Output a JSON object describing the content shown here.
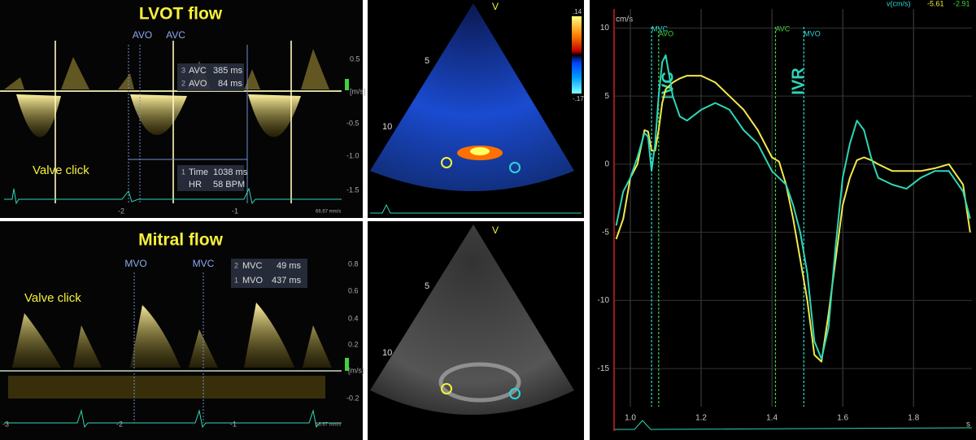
{
  "lvot_panel": {
    "title": "LVOT flow",
    "markers": [
      "AVO",
      "AVC"
    ],
    "measure_1": [
      "3",
      "AVC",
      "385 ms"
    ],
    "measure_2": [
      "2",
      "AVO",
      "84 ms"
    ],
    "measure_3": [
      "1",
      "Time",
      "1038 ms"
    ],
    "measure_4": [
      "HR",
      "58 BPM"
    ],
    "annotation": "Valve click",
    "unit": "[m/s]",
    "scale_labels": [
      "0.5",
      "-0.5",
      "-1.0",
      "-1.5"
    ],
    "time_labels": [
      "-2",
      "-1"
    ],
    "sweep": "66.67 mm/s"
  },
  "mitral_panel": {
    "title": "Mitral flow",
    "markers": [
      "MVO",
      "MVC"
    ],
    "measure_1": [
      "2",
      "MVC",
      "49 ms"
    ],
    "measure_2": [
      "1",
      "MVO",
      "437 ms"
    ],
    "annotation": "Valve click",
    "unit": "[m/s]",
    "scale_labels": [
      "0.8",
      "0.6",
      "0.4",
      "0.2",
      "-0.2"
    ],
    "time_labels": [
      "-3",
      "-2",
      "-1"
    ],
    "sweep": "66.67 mm/s"
  },
  "color_panel": {
    "apex": "V",
    "depth_labels": [
      "5",
      "10"
    ],
    "colorbar_labels": [
      ".14",
      "-.17"
    ]
  },
  "gray_panel": {
    "apex": "V",
    "depth_labels": [
      "5",
      "10"
    ]
  },
  "chart_data": {
    "type": "line",
    "y_label": "cm/s",
    "x_label": "s",
    "header": [
      "v(cm/s)",
      "-5.61",
      "-2.91"
    ],
    "x": [
      0.96,
      0.98,
      1.0,
      1.02,
      1.04,
      1.05,
      1.06,
      1.07,
      1.08,
      1.09,
      1.1,
      1.12,
      1.14,
      1.16,
      1.2,
      1.24,
      1.28,
      1.32,
      1.36,
      1.4,
      1.42,
      1.44,
      1.46,
      1.48,
      1.5,
      1.52,
      1.54,
      1.56,
      1.58,
      1.6,
      1.62,
      1.64,
      1.66,
      1.68,
      1.7,
      1.74,
      1.78,
      1.82,
      1.86,
      1.9,
      1.94,
      1.96
    ],
    "series": [
      {
        "color": "#f2e94a",
        "values": [
          -5.5,
          -4,
          -1,
          0,
          2.5,
          2.4,
          1,
          1,
          2.5,
          4.5,
          5.5,
          6,
          6.3,
          6.5,
          6.5,
          6,
          5,
          4,
          2.5,
          0.5,
          0.2,
          -1.5,
          -4,
          -7,
          -10,
          -14,
          -14.5,
          -11,
          -7,
          -3,
          -1,
          0.3,
          0.5,
          0.3,
          0,
          -0.5,
          -0.5,
          -0.5,
          -0.3,
          0,
          -1.5,
          -5
        ]
      },
      {
        "color": "#2ed6b6",
        "values": [
          -4.5,
          -2,
          -1,
          0.5,
          2.3,
          2,
          -0.5,
          1.5,
          5,
          7.5,
          8,
          5,
          3.5,
          3.2,
          4,
          4.5,
          4,
          2.5,
          1.5,
          -0.5,
          -1,
          -1.5,
          -3,
          -5,
          -8,
          -13,
          -14.3,
          -12,
          -6,
          -1,
          1.5,
          3.2,
          2.5,
          0.5,
          -1,
          -1.5,
          -1.8,
          -1,
          -0.5,
          -0.5,
          -2,
          -4
        ]
      }
    ],
    "events": [
      {
        "label": "MVC",
        "x": 1.06,
        "color": "#2ed6d6"
      },
      {
        "label": "AVO",
        "x": 1.08,
        "color": "#3fd23f"
      },
      {
        "label": "AVC",
        "x": 1.41,
        "color": "#3fd23f"
      },
      {
        "label": "MVO",
        "x": 1.49,
        "color": "#2ed6d6"
      }
    ],
    "annotations": [
      "IVC",
      "IVR"
    ],
    "xlim": [
      0.954,
      1.965
    ],
    "ylim": [
      -17.8,
      11.4
    ],
    "xticks": [
      {
        "value": 1,
        "label": "1.0"
      },
      1.2,
      1.4,
      1.6,
      1.8
    ],
    "yticks": [
      10,
      5,
      0,
      -5,
      -10,
      -15
    ],
    "grid": true
  }
}
